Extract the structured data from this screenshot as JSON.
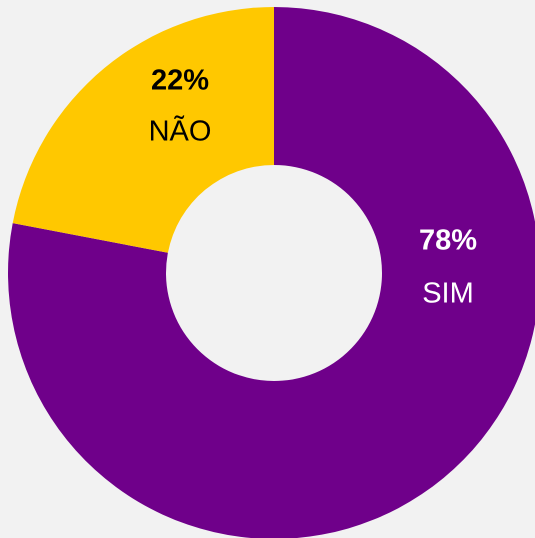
{
  "chart_data": {
    "type": "donut",
    "categories": [
      "SIM",
      "NÃO"
    ],
    "values": [
      78,
      22
    ],
    "value_labels": [
      "78%",
      "22%"
    ],
    "colors": [
      "#6f008a",
      "#ffc800"
    ],
    "label_colors": [
      "#ffffff",
      "#000000"
    ]
  }
}
